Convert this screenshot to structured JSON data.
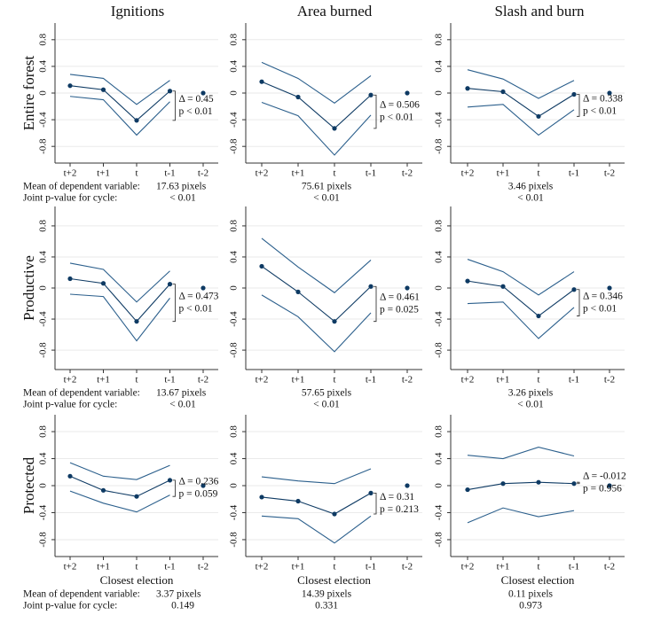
{
  "column_titles": [
    "Ignitions",
    "Area burned",
    "Slash and burn"
  ],
  "row_labels": [
    "Entire forest",
    "Productive",
    "Protected"
  ],
  "x_label": "Closest election",
  "footer_labels": {
    "mean": "Mean of dependent variable:",
    "joint_p": "Joint p-value for cycle:"
  },
  "chart_data": [
    {
      "type": "line",
      "categories": [
        "t+2",
        "t+1",
        "t",
        "t-1",
        "t-2"
      ],
      "ylim": [
        -1.05,
        1.05
      ],
      "yticks": [
        -0.8,
        -0.4,
        0,
        0.4,
        0.8
      ],
      "grid": true,
      "series": [
        {
          "color": "#0e3a63",
          "marker": true,
          "line": true,
          "values": [
            0.11,
            0.05,
            -0.41,
            0.03,
            null
          ]
        },
        {
          "color": "#0e3a63",
          "marker": true,
          "line": false,
          "values": [
            null,
            null,
            null,
            null,
            0
          ]
        },
        {
          "color": "#2b5f8c",
          "marker": false,
          "line": true,
          "values": [
            0.28,
            0.22,
            -0.17,
            0.19,
            null
          ]
        },
        {
          "color": "#2b5f8c",
          "marker": false,
          "line": true,
          "values": [
            -0.05,
            -0.1,
            -0.63,
            -0.13,
            null
          ]
        }
      ],
      "delta_label": "Δ = 0.45",
      "p_label": "p < 0.01",
      "mean": "17.63 pixels",
      "joint_p": "< 0.01"
    },
    {
      "type": "line",
      "categories": [
        "t+2",
        "t+1",
        "t",
        "t-1",
        "t-2"
      ],
      "ylim": [
        -1.05,
        1.05
      ],
      "yticks": [
        -0.8,
        -0.4,
        0,
        0.4,
        0.8
      ],
      "grid": true,
      "series": [
        {
          "color": "#0e3a63",
          "marker": true,
          "line": true,
          "values": [
            0.17,
            -0.06,
            -0.53,
            -0.03,
            null
          ]
        },
        {
          "color": "#0e3a63",
          "marker": true,
          "line": false,
          "values": [
            null,
            null,
            null,
            null,
            0
          ]
        },
        {
          "color": "#2b5f8c",
          "marker": false,
          "line": true,
          "values": [
            0.46,
            0.22,
            -0.15,
            0.26,
            null
          ]
        },
        {
          "color": "#2b5f8c",
          "marker": false,
          "line": true,
          "values": [
            -0.14,
            -0.34,
            -0.93,
            -0.33,
            null
          ]
        }
      ],
      "delta_label": "Δ = 0.506",
      "p_label": "p < 0.01",
      "mean": "75.61 pixels",
      "joint_p": "< 0.01"
    },
    {
      "type": "line",
      "categories": [
        "t+2",
        "t+1",
        "t",
        "t-1",
        "t-2"
      ],
      "ylim": [
        -1.05,
        1.05
      ],
      "yticks": [
        -0.8,
        -0.4,
        0,
        0.4,
        0.8
      ],
      "grid": true,
      "series": [
        {
          "color": "#0e3a63",
          "marker": true,
          "line": true,
          "values": [
            0.07,
            0.02,
            -0.35,
            -0.02,
            null
          ]
        },
        {
          "color": "#0e3a63",
          "marker": true,
          "line": false,
          "values": [
            null,
            null,
            null,
            null,
            0
          ]
        },
        {
          "color": "#2b5f8c",
          "marker": false,
          "line": true,
          "values": [
            0.35,
            0.21,
            -0.08,
            0.19,
            null
          ]
        },
        {
          "color": "#2b5f8c",
          "marker": false,
          "line": true,
          "values": [
            -0.21,
            -0.17,
            -0.63,
            -0.25,
            null
          ]
        }
      ],
      "delta_label": "Δ = 0.338",
      "p_label": "p < 0.01",
      "mean": "3.46 pixels",
      "joint_p": "< 0.01"
    },
    {
      "type": "line",
      "categories": [
        "t+2",
        "t+1",
        "t",
        "t-1",
        "t-2"
      ],
      "ylim": [
        -1.05,
        1.05
      ],
      "yticks": [
        -0.8,
        -0.4,
        0,
        0.4,
        0.8
      ],
      "grid": true,
      "series": [
        {
          "color": "#0e3a63",
          "marker": true,
          "line": true,
          "values": [
            0.12,
            0.06,
            -0.43,
            0.05,
            null
          ]
        },
        {
          "color": "#0e3a63",
          "marker": true,
          "line": false,
          "values": [
            null,
            null,
            null,
            null,
            0
          ]
        },
        {
          "color": "#2b5f8c",
          "marker": false,
          "line": true,
          "values": [
            0.32,
            0.24,
            -0.18,
            0.22,
            null
          ]
        },
        {
          "color": "#2b5f8c",
          "marker": false,
          "line": true,
          "values": [
            -0.08,
            -0.11,
            -0.68,
            -0.13,
            null
          ]
        }
      ],
      "delta_label": "Δ = 0.473",
      "p_label": "p < 0.01",
      "mean": "13.67 pixels",
      "joint_p": "< 0.01"
    },
    {
      "type": "line",
      "categories": [
        "t+2",
        "t+1",
        "t",
        "t-1",
        "t-2"
      ],
      "ylim": [
        -1.05,
        1.05
      ],
      "yticks": [
        -0.8,
        -0.4,
        0,
        0.4,
        0.8
      ],
      "grid": true,
      "series": [
        {
          "color": "#0e3a63",
          "marker": true,
          "line": true,
          "values": [
            0.28,
            -0.05,
            -0.43,
            0.02,
            null
          ]
        },
        {
          "color": "#0e3a63",
          "marker": true,
          "line": false,
          "values": [
            null,
            null,
            null,
            null,
            0
          ]
        },
        {
          "color": "#2b5f8c",
          "marker": false,
          "line": true,
          "values": [
            0.64,
            0.27,
            -0.06,
            0.36,
            null
          ]
        },
        {
          "color": "#2b5f8c",
          "marker": false,
          "line": true,
          "values": [
            -0.09,
            -0.37,
            -0.82,
            -0.32,
            null
          ]
        }
      ],
      "delta_label": "Δ = 0.461",
      "p_label": "p = 0.025",
      "mean": "57.65 pixels",
      "joint_p": "< 0.01"
    },
    {
      "type": "line",
      "categories": [
        "t+2",
        "t+1",
        "t",
        "t-1",
        "t-2"
      ],
      "ylim": [
        -1.05,
        1.05
      ],
      "yticks": [
        -0.8,
        -0.4,
        0,
        0.4,
        0.8
      ],
      "grid": true,
      "series": [
        {
          "color": "#0e3a63",
          "marker": true,
          "line": true,
          "values": [
            0.09,
            0.02,
            -0.36,
            -0.02,
            null
          ]
        },
        {
          "color": "#0e3a63",
          "marker": true,
          "line": false,
          "values": [
            null,
            null,
            null,
            null,
            0
          ]
        },
        {
          "color": "#2b5f8c",
          "marker": false,
          "line": true,
          "values": [
            0.37,
            0.21,
            -0.09,
            0.21,
            null
          ]
        },
        {
          "color": "#2b5f8c",
          "marker": false,
          "line": true,
          "values": [
            -0.2,
            -0.18,
            -0.65,
            -0.25,
            null
          ]
        }
      ],
      "delta_label": "Δ = 0.346",
      "p_label": "p < 0.01",
      "mean": "3.26 pixels",
      "joint_p": "< 0.01"
    },
    {
      "type": "line",
      "categories": [
        "t+2",
        "t+1",
        "t",
        "t-1",
        "t-2"
      ],
      "ylim": [
        -1.05,
        1.05
      ],
      "yticks": [
        -0.8,
        -0.4,
        0,
        0.4,
        0.8
      ],
      "grid": true,
      "series": [
        {
          "color": "#0e3a63",
          "marker": true,
          "line": true,
          "values": [
            0.14,
            -0.07,
            -0.16,
            0.08,
            null
          ]
        },
        {
          "color": "#0e3a63",
          "marker": true,
          "line": false,
          "values": [
            null,
            null,
            null,
            null,
            0
          ]
        },
        {
          "color": "#2b5f8c",
          "marker": false,
          "line": true,
          "values": [
            0.34,
            0.14,
            0.09,
            0.3,
            null
          ]
        },
        {
          "color": "#2b5f8c",
          "marker": false,
          "line": true,
          "values": [
            -0.08,
            -0.26,
            -0.39,
            -0.14,
            null
          ]
        }
      ],
      "delta_label": "Δ = 0.236",
      "p_label": "p = 0.059",
      "mean": "3.37 pixels",
      "joint_p": "0.149"
    },
    {
      "type": "line",
      "categories": [
        "t+2",
        "t+1",
        "t",
        "t-1",
        "t-2"
      ],
      "ylim": [
        -1.05,
        1.05
      ],
      "yticks": [
        -0.8,
        -0.4,
        0,
        0.4,
        0.8
      ],
      "grid": true,
      "series": [
        {
          "color": "#0e3a63",
          "marker": true,
          "line": true,
          "values": [
            -0.17,
            -0.23,
            -0.42,
            -0.11,
            null
          ]
        },
        {
          "color": "#0e3a63",
          "marker": true,
          "line": false,
          "values": [
            null,
            null,
            null,
            null,
            0
          ]
        },
        {
          "color": "#2b5f8c",
          "marker": false,
          "line": true,
          "values": [
            0.13,
            0.07,
            0.03,
            0.25,
            null
          ]
        },
        {
          "color": "#2b5f8c",
          "marker": false,
          "line": true,
          "values": [
            -0.45,
            -0.49,
            -0.85,
            -0.45,
            null
          ]
        }
      ],
      "delta_label": "Δ = 0.31",
      "p_label": "p = 0.213",
      "mean": "14.39 pixels",
      "joint_p": "0.331"
    },
    {
      "type": "line",
      "categories": [
        "t+2",
        "t+1",
        "t",
        "t-1",
        "t-2"
      ],
      "ylim": [
        -1.05,
        1.05
      ],
      "yticks": [
        -0.8,
        -0.4,
        0,
        0.4,
        0.8
      ],
      "grid": true,
      "series": [
        {
          "color": "#0e3a63",
          "marker": true,
          "line": true,
          "values": [
            -0.06,
            0.03,
            0.05,
            0.03,
            null
          ]
        },
        {
          "color": "#0e3a63",
          "marker": true,
          "line": false,
          "values": [
            null,
            null,
            null,
            null,
            0
          ]
        },
        {
          "color": "#2b5f8c",
          "marker": false,
          "line": true,
          "values": [
            0.45,
            0.4,
            0.57,
            0.44,
            null
          ]
        },
        {
          "color": "#2b5f8c",
          "marker": false,
          "line": true,
          "values": [
            -0.55,
            -0.33,
            -0.46,
            -0.37,
            null
          ]
        }
      ],
      "delta_label": "Δ = -0.012",
      "p_label": "p = 0.956",
      "mean": "0.11 pixels",
      "joint_p": "0.973"
    }
  ]
}
